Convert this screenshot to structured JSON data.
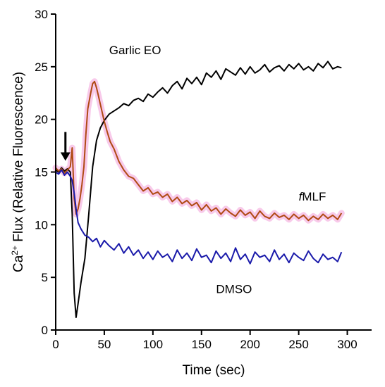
{
  "chart_data": {
    "type": "line",
    "title": "",
    "xlabel": "Time (sec)",
    "ylabel": {
      "pre": "Ca",
      "sup": "2+",
      "post": " Flux (Relative Fluorescence)"
    },
    "xlim": [
      0,
      325
    ],
    "ylim": [
      0,
      30
    ],
    "xticks": [
      0,
      50,
      100,
      150,
      200,
      250,
      300
    ],
    "yticks": [
      0,
      5,
      10,
      15,
      20,
      25,
      30
    ],
    "grid": false,
    "legend": "none",
    "arrow_annotation": {
      "x": 10,
      "y_from": 18.8,
      "y_to": 16.2
    },
    "series": [
      {
        "name": "Garlic EO",
        "color": "#000000",
        "label_at": {
          "x": 55,
          "y": 26.2
        },
        "x": [
          0,
          3,
          6,
          9,
          12,
          15,
          17,
          19,
          21,
          23,
          26,
          30,
          34,
          38,
          42,
          46,
          50,
          55,
          60,
          65,
          70,
          75,
          80,
          85,
          90,
          95,
          100,
          105,
          110,
          115,
          120,
          125,
          130,
          135,
          140,
          145,
          150,
          155,
          160,
          165,
          170,
          175,
          180,
          185,
          190,
          195,
          200,
          205,
          210,
          215,
          220,
          225,
          230,
          235,
          240,
          245,
          250,
          255,
          260,
          265,
          270,
          275,
          280,
          285,
          290,
          294
        ],
        "y": [
          15.2,
          15.0,
          15.4,
          15.1,
          15.3,
          15.0,
          11.0,
          3.5,
          1.2,
          2.5,
          4.5,
          6.8,
          11.0,
          15.5,
          18.0,
          19.2,
          19.9,
          20.5,
          20.8,
          21.1,
          21.5,
          21.3,
          21.8,
          22.0,
          21.7,
          22.4,
          22.1,
          22.6,
          23.0,
          22.5,
          23.2,
          23.6,
          22.9,
          23.9,
          23.4,
          24.0,
          23.3,
          24.4,
          24.0,
          24.6,
          23.8,
          24.8,
          24.5,
          24.2,
          24.9,
          24.3,
          25.0,
          24.4,
          24.7,
          25.2,
          24.5,
          24.9,
          25.1,
          24.6,
          25.2,
          24.8,
          25.3,
          24.7,
          25.0,
          24.6,
          25.3,
          24.9,
          25.5,
          24.8,
          25.0,
          24.9
        ]
      },
      {
        "name": "fMLF",
        "label_style": {
          "prefix": "f",
          "prefix_italic": true,
          "rest": "MLF"
        },
        "color": "#b04a14",
        "halo": "#f5b8e3",
        "label_at": {
          "x": 250,
          "y": 12.3
        },
        "x": [
          0,
          3,
          6,
          9,
          12,
          15,
          17,
          19,
          21,
          23,
          25,
          27,
          29,
          31,
          33,
          36,
          38,
          40,
          42,
          44,
          47,
          50,
          53,
          56,
          60,
          65,
          70,
          75,
          80,
          85,
          90,
          95,
          100,
          105,
          110,
          115,
          120,
          125,
          130,
          135,
          140,
          145,
          150,
          155,
          160,
          165,
          170,
          175,
          180,
          185,
          190,
          195,
          200,
          205,
          210,
          215,
          220,
          225,
          230,
          235,
          240,
          245,
          250,
          255,
          260,
          265,
          270,
          275,
          280,
          285,
          290,
          294
        ],
        "y": [
          15.4,
          15.1,
          15.3,
          14.9,
          15.2,
          15.5,
          17.3,
          12.5,
          11.0,
          11.5,
          12.5,
          13.8,
          15.5,
          18.5,
          21.0,
          22.5,
          23.4,
          23.6,
          23.0,
          22.2,
          21.0,
          19.8,
          18.8,
          17.9,
          17.2,
          16.0,
          15.2,
          14.6,
          14.4,
          13.8,
          13.2,
          13.5,
          12.9,
          13.1,
          12.6,
          12.9,
          12.2,
          12.6,
          12.0,
          12.3,
          11.8,
          12.1,
          11.4,
          11.9,
          11.3,
          11.6,
          11.0,
          11.5,
          11.1,
          10.8,
          11.4,
          10.9,
          11.2,
          10.6,
          11.3,
          10.8,
          10.6,
          11.1,
          10.7,
          10.9,
          10.5,
          11.0,
          10.6,
          10.9,
          10.4,
          10.8,
          10.5,
          11.0,
          10.6,
          10.9,
          10.5,
          11.1
        ]
      },
      {
        "name": "DMSO",
        "color": "#1a1aaa",
        "label_at": {
          "x": 165,
          "y": 3.5
        },
        "x": [
          0,
          3,
          6,
          9,
          12,
          15,
          17,
          19,
          21,
          23,
          26,
          30,
          34,
          38,
          42,
          46,
          50,
          55,
          60,
          65,
          70,
          75,
          80,
          85,
          90,
          95,
          100,
          105,
          110,
          115,
          120,
          125,
          130,
          135,
          140,
          145,
          150,
          155,
          160,
          165,
          170,
          175,
          180,
          185,
          190,
          195,
          200,
          205,
          210,
          215,
          220,
          225,
          230,
          235,
          240,
          245,
          250,
          255,
          260,
          265,
          270,
          275,
          280,
          285,
          290,
          294
        ],
        "y": [
          15.0,
          14.8,
          15.2,
          14.7,
          15.0,
          14.6,
          14.2,
          13.0,
          11.5,
          10.2,
          9.6,
          9.0,
          8.8,
          8.4,
          8.7,
          7.9,
          8.5,
          8.0,
          7.6,
          8.2,
          7.3,
          7.9,
          7.1,
          7.6,
          6.8,
          7.4,
          6.7,
          7.5,
          6.9,
          7.2,
          6.5,
          7.6,
          6.8,
          7.3,
          6.6,
          7.7,
          6.9,
          7.1,
          6.4,
          7.5,
          6.8,
          7.3,
          6.5,
          7.8,
          6.7,
          7.2,
          6.3,
          7.4,
          6.9,
          7.1,
          6.5,
          7.6,
          6.7,
          7.2,
          6.4,
          7.3,
          6.9,
          6.6,
          7.5,
          6.8,
          6.4,
          7.2,
          6.7,
          6.9,
          6.5,
          7.4
        ]
      }
    ]
  }
}
